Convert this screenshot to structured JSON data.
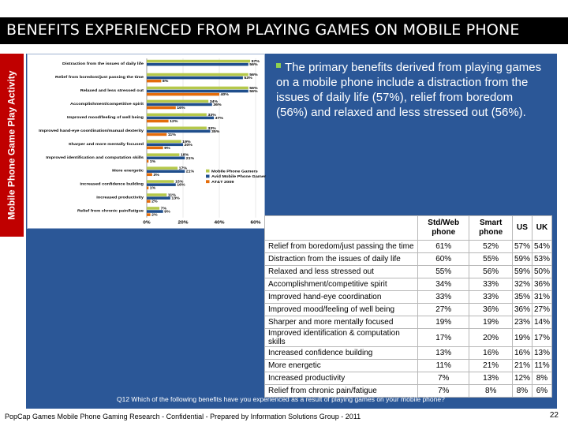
{
  "title": "BENEFITS EXPERIENCED FROM PLAYING GAMES ON MOBILE PHONE",
  "side_tab": "Mobile Phone Game Play Activity",
  "bullet": "The primary benefits derived from playing games on a mobile phone include a distraction from the issues of daily life (57%), relief from boredom (56%) and relaxed and less stressed out (56%).",
  "question": "Q12  Which of the following benefits have you experienced as a result of playing games on your mobile phone?",
  "footer": "PopCap Games Mobile Phone Gaming Research - Confidential - Prepared by Information Solutions Group - 2011",
  "page_number": "22",
  "colors": {
    "mobile": "#b5c84a",
    "avid": "#1f4e8c",
    "att": "#e46c0a",
    "panel": "#2b5797",
    "title_bg": "#000000",
    "tab": "#c00000"
  },
  "chart_data": {
    "type": "bar",
    "orientation": "horizontal",
    "categories": [
      "Distraction from the issues of daily life",
      "Relief from boredom/just passing the time",
      "Relaxed and less stressed out",
      "Accomplishment/competitive spirit",
      "Improved mood/feeling of well being",
      "Improved hand-eye coordination/manual dexterity",
      "Sharper and more mentally focused",
      "Improved identification and computation skills",
      "More energetic",
      "Increased confidence building",
      "Increased productivity",
      "Relief from chronic pain/fatigue"
    ],
    "series": [
      {
        "name": "Mobile Phone Gamers",
        "values": [
          57,
          56,
          56,
          34,
          33,
          33,
          19,
          18,
          17,
          15,
          11,
          7
        ],
        "labels": [
          "57%",
          "56%",
          "56%",
          "34%",
          "33%",
          "33%",
          "19%",
          "18%",
          "17%",
          "15%",
          "11%",
          "7%"
        ]
      },
      {
        "name": "Avid Mobile Phone Gamers",
        "values": [
          56,
          53,
          56,
          36,
          37,
          35,
          20,
          21,
          21,
          16,
          13,
          9
        ],
        "labels": [
          "56%",
          "53%",
          "56%",
          "36%",
          "37%",
          "35%",
          "20%",
          "21%",
          "21%",
          "16%",
          "13%",
          "9%"
        ]
      },
      {
        "name": "AT&T 2009",
        "values": [
          null,
          8,
          40,
          16,
          12,
          11,
          9,
          1,
          3,
          1,
          2,
          2
        ],
        "labels": [
          "",
          "8%",
          "40%",
          "16%",
          "12%",
          "11%",
          "9%",
          "1%",
          "3%",
          "1%",
          "2%",
          "2%"
        ]
      }
    ],
    "xticks": [
      "0%",
      "20%",
      "40%",
      "60%"
    ],
    "xlim": [
      0,
      60
    ],
    "legend_position": "bottom-right"
  },
  "table": {
    "headers": [
      "",
      "Std/Web phone",
      "Smart phone",
      "US",
      "UK"
    ],
    "rows": [
      [
        "Relief from boredom/just passing the time",
        "61%",
        "52%",
        "57%",
        "54%"
      ],
      [
        "Distraction from the issues of daily life",
        "60%",
        "55%",
        "59%",
        "53%"
      ],
      [
        "Relaxed and less stressed out",
        "55%",
        "56%",
        "59%",
        "50%"
      ],
      [
        "Accomplishment/competitive spirit",
        "34%",
        "33%",
        "32%",
        "36%"
      ],
      [
        "Improved hand-eye coordination",
        "33%",
        "33%",
        "35%",
        "31%"
      ],
      [
        "Improved mood/feeling of well being",
        "27%",
        "36%",
        "36%",
        "27%"
      ],
      [
        "Sharper and more mentally focused",
        "19%",
        "19%",
        "23%",
        "14%"
      ],
      [
        "Improved identification & computation skills",
        "17%",
        "20%",
        "19%",
        "17%"
      ],
      [
        "Increased confidence building",
        "13%",
        "16%",
        "16%",
        "13%"
      ],
      [
        "More energetic",
        "11%",
        "21%",
        "21%",
        "11%"
      ],
      [
        "Increased productivity",
        "7%",
        "13%",
        "12%",
        "8%"
      ],
      [
        "Relief from chronic pain/fatigue",
        "7%",
        "8%",
        "8%",
        "6%"
      ]
    ]
  }
}
